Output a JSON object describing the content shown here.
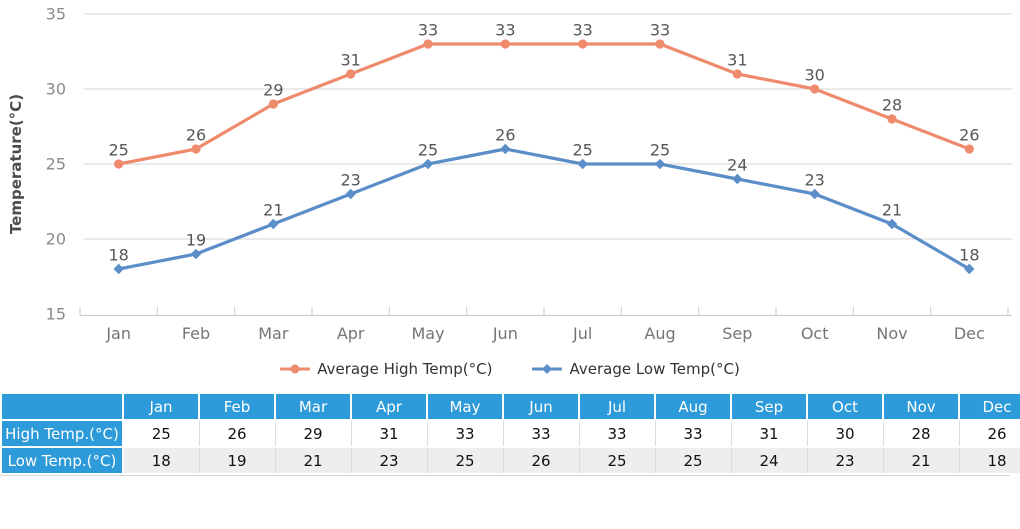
{
  "chart_data": {
    "type": "line",
    "categories": [
      "Jan",
      "Feb",
      "Mar",
      "Apr",
      "May",
      "Jun",
      "Jul",
      "Aug",
      "Sep",
      "Oct",
      "Nov",
      "Dec"
    ],
    "series": [
      {
        "name": "Average High Temp(°C)",
        "values": [
          25,
          26,
          29,
          31,
          33,
          33,
          33,
          33,
          31,
          30,
          28,
          26
        ],
        "color": "#ee8b6d",
        "marker": "circle"
      },
      {
        "name": "Average Low Temp(°C)",
        "values": [
          18,
          19,
          21,
          23,
          25,
          26,
          25,
          25,
          24,
          23,
          21,
          18
        ],
        "color": "#5b8dc8",
        "marker": "diamond"
      }
    ],
    "title": "",
    "xlabel": "",
    "ylabel": "Temperature(°C)",
    "ylim": [
      15,
      35
    ],
    "ytick_step": 5,
    "yticks": [
      15,
      20,
      25,
      30,
      35
    ],
    "grid": true,
    "legend_position": "bottom",
    "point_labels_shown": true
  },
  "legend": {
    "high_label": "Average High Temp(°C)",
    "low_label": "Average Low Temp(°C)"
  },
  "table": {
    "corner_label": "",
    "columns": [
      "Jan",
      "Feb",
      "Mar",
      "Apr",
      "May",
      "Jun",
      "Jul",
      "Aug",
      "Sep",
      "Oct",
      "Nov",
      "Dec"
    ],
    "rows": [
      {
        "label": "High Temp.(°C)",
        "values": [
          25,
          26,
          29,
          31,
          33,
          33,
          33,
          33,
          31,
          30,
          28,
          26
        ]
      },
      {
        "label": "Low Temp.(°C)",
        "values": [
          18,
          19,
          21,
          23,
          25,
          26,
          25,
          25,
          24,
          23,
          21,
          18
        ]
      }
    ],
    "header_bg": "#2d9ad9",
    "stripe_bg": "#eeeeee"
  },
  "colors": {
    "high_series": "#ee8b6d",
    "low_series": "#5b8dc8",
    "gridline": "#d4d4d4",
    "axis_line": "#c9c9c9",
    "table_header_blue": "#2d9ad9"
  }
}
